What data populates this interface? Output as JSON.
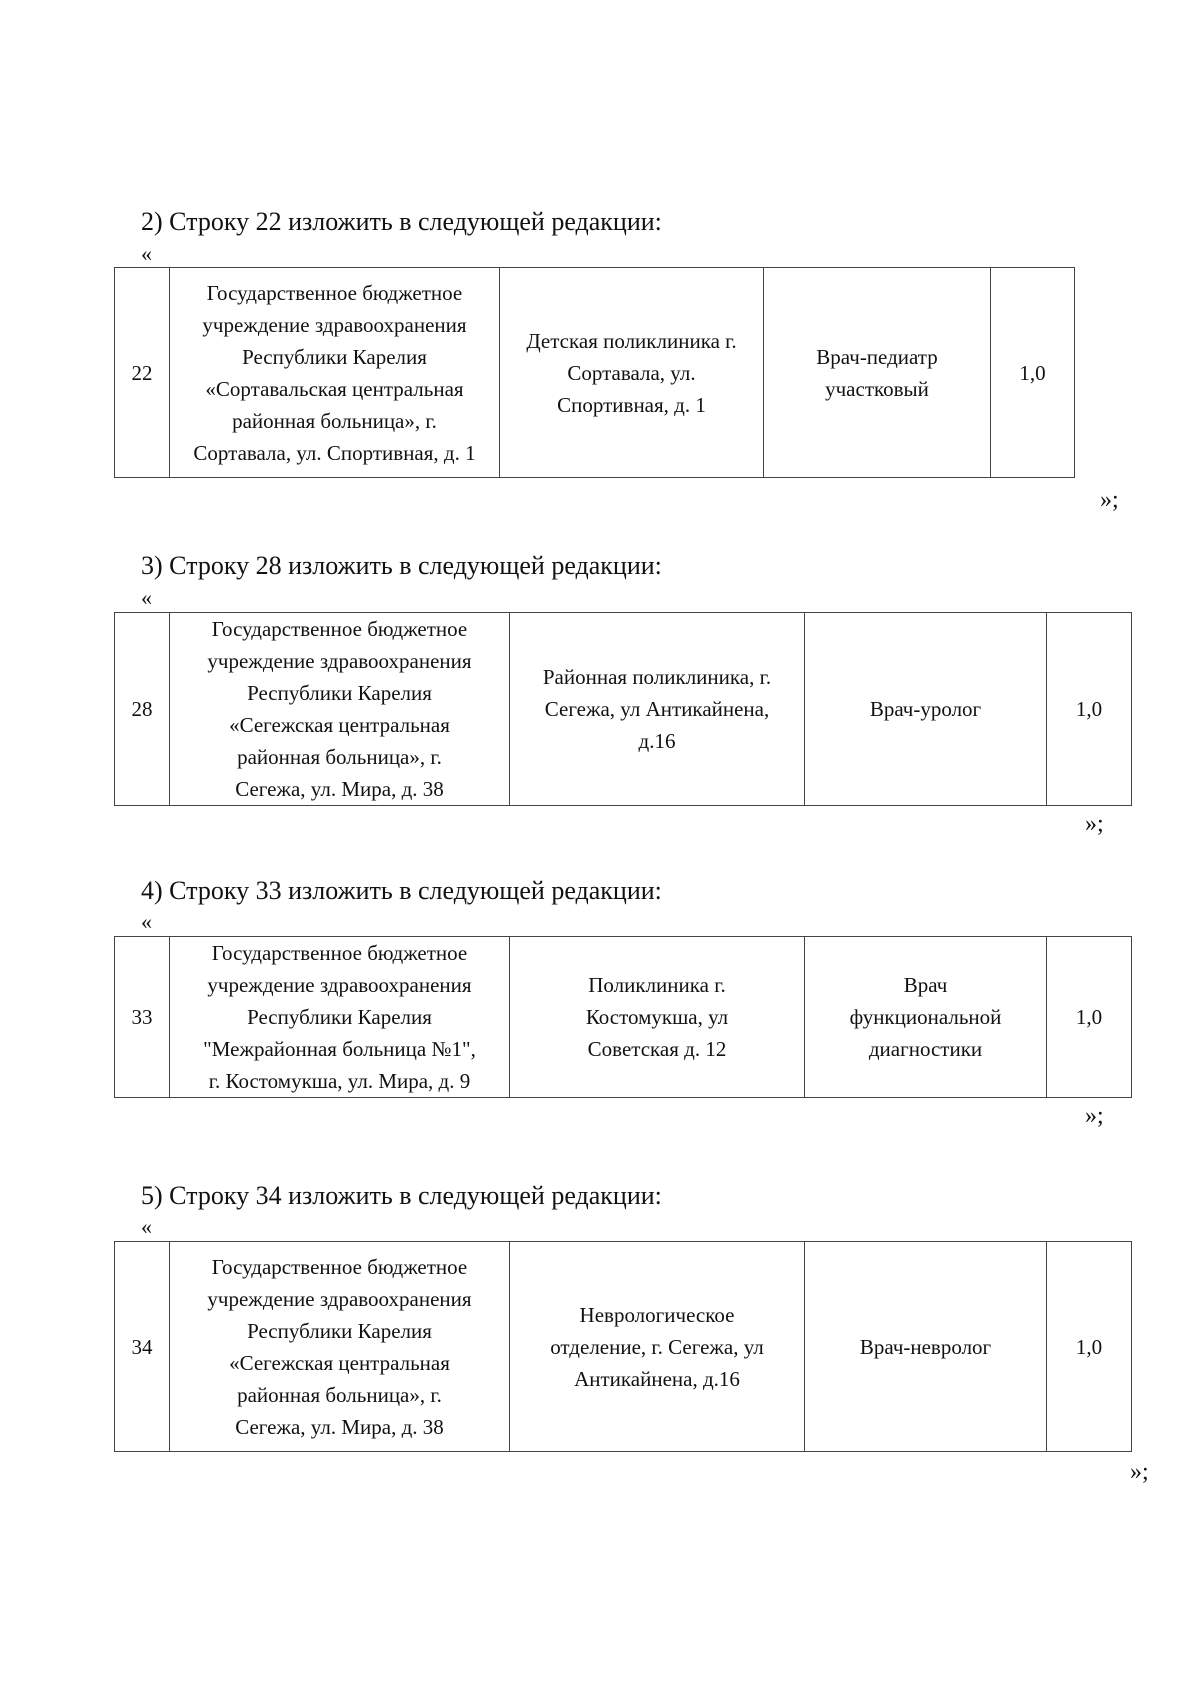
{
  "open_quote": "«",
  "close_quote": "»;",
  "sections": [
    {
      "heading": "2) Строку 22 изложить в следующей редакции:",
      "row": {
        "num": "22",
        "org": [
          "Государственное бюджетное",
          "учреждение здравоохранения",
          "Республики Карелия",
          "«Сортавальская центральная",
          "районная больница», г.",
          "Сортавала, ул. Спортивная, д. 1"
        ],
        "unit": [
          "Детская поликлиника  г.",
          "Сортавала, ул.",
          "Спортивная, д. 1"
        ],
        "position": [
          "Врач-педиатр",
          "участковый"
        ],
        "rate": "1,0"
      }
    },
    {
      "heading": "3) Строку 28 изложить в следующей редакции:",
      "row": {
        "num": "28",
        "org": [
          "Государственное бюджетное",
          "учреждение здравоохранения",
          "Республики Карелия",
          "«Сегежская центральная",
          "районная больница», г.",
          "Сегежа, ул. Мира, д. 38"
        ],
        "unit": [
          "Районная поликлиника, г.",
          "Сегежа, ул Антикайнена,",
          "д.16"
        ],
        "position": [
          "Врач-уролог"
        ],
        "rate": "1,0"
      }
    },
    {
      "heading": "4) Строку 33 изложить в следующей редакции:",
      "row": {
        "num": "33",
        "org": [
          "Государственное бюджетное",
          "учреждение здравоохранения",
          "Республики Карелия",
          "\"Межрайонная больница №1\",",
          "г. Костомукша, ул. Мира, д. 9"
        ],
        "unit": [
          "Поликлиника г.",
          "Костомукша, ул",
          "Советская д. 12"
        ],
        "position": [
          "Врач",
          "функциональной",
          "диагностики"
        ],
        "rate": "1,0"
      }
    },
    {
      "heading": "5) Строку 34 изложить в следующей редакции:",
      "row": {
        "num": "34",
        "org": [
          "Государственное бюджетное",
          "учреждение здравоохранения",
          "Республики Карелия",
          "«Сегежская центральная",
          "районная больница», г.",
          "Сегежа, ул. Мира, д. 38"
        ],
        "unit": [
          "Неврологическое",
          "отделение, г. Сегежа, ул",
          "Антикайнена, д.16"
        ],
        "position": [
          "Врач-невролог"
        ],
        "rate": "1,0"
      }
    }
  ]
}
